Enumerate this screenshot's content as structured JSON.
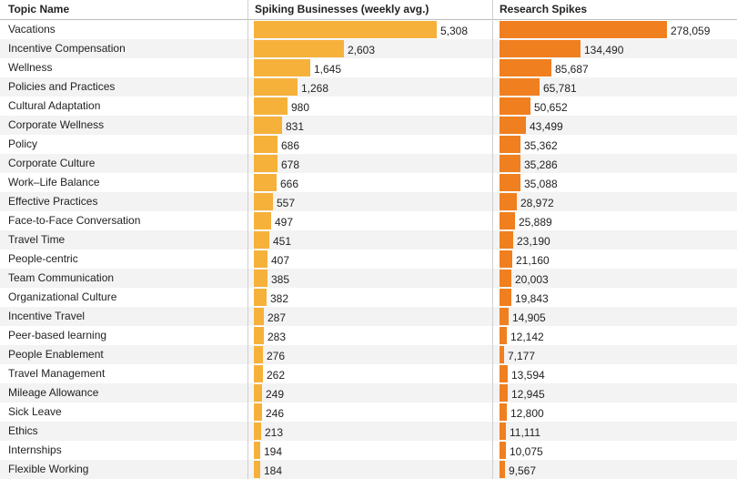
{
  "chart_data": {
    "type": "table",
    "headers": {
      "topic": "Topic Name",
      "businesses": "Spiking Businesses (weekly avg.)",
      "research": "Research Spikes"
    },
    "colors": {
      "businesses_bar": "#f6b13b",
      "research_bar": "#f07f1f"
    },
    "rows": [
      {
        "topic": "Vacations",
        "businesses": 5308,
        "businesses_label": "5,308",
        "research": 278059,
        "research_label": "278,059"
      },
      {
        "topic": "Incentive Compensation",
        "businesses": 2603,
        "businesses_label": "2,603",
        "research": 134490,
        "research_label": "134,490"
      },
      {
        "topic": "Wellness",
        "businesses": 1645,
        "businesses_label": "1,645",
        "research": 85687,
        "research_label": "85,687"
      },
      {
        "topic": "Policies and Practices",
        "businesses": 1268,
        "businesses_label": "1,268",
        "research": 65781,
        "research_label": "65,781"
      },
      {
        "topic": "Cultural Adaptation",
        "businesses": 980,
        "businesses_label": "980",
        "research": 50652,
        "research_label": "50,652"
      },
      {
        "topic": "Corporate Wellness",
        "businesses": 831,
        "businesses_label": "831",
        "research": 43499,
        "research_label": "43,499"
      },
      {
        "topic": "Policy",
        "businesses": 686,
        "businesses_label": "686",
        "research": 35362,
        "research_label": "35,362"
      },
      {
        "topic": "Corporate Culture",
        "businesses": 678,
        "businesses_label": "678",
        "research": 35286,
        "research_label": "35,286"
      },
      {
        "topic": "Work–Life Balance",
        "businesses": 666,
        "businesses_label": "666",
        "research": 35088,
        "research_label": "35,088"
      },
      {
        "topic": "Effective Practices",
        "businesses": 557,
        "businesses_label": "557",
        "research": 28972,
        "research_label": "28,972"
      },
      {
        "topic": "Face-to-Face Conversation",
        "businesses": 497,
        "businesses_label": "497",
        "research": 25889,
        "research_label": "25,889"
      },
      {
        "topic": "Travel Time",
        "businesses": 451,
        "businesses_label": "451",
        "research": 23190,
        "research_label": "23,190"
      },
      {
        "topic": "People-centric",
        "businesses": 407,
        "businesses_label": "407",
        "research": 21160,
        "research_label": "21,160"
      },
      {
        "topic": "Team Communication",
        "businesses": 385,
        "businesses_label": "385",
        "research": 20003,
        "research_label": "20,003"
      },
      {
        "topic": "Organizational Culture",
        "businesses": 382,
        "businesses_label": "382",
        "research": 19843,
        "research_label": "19,843"
      },
      {
        "topic": "Incentive Travel",
        "businesses": 287,
        "businesses_label": "287",
        "research": 14905,
        "research_label": "14,905"
      },
      {
        "topic": "Peer-based learning",
        "businesses": 283,
        "businesses_label": "283",
        "research": 12142,
        "research_label": "12,142"
      },
      {
        "topic": "People Enablement",
        "businesses": 276,
        "businesses_label": "276",
        "research": 7177,
        "research_label": "7,177"
      },
      {
        "topic": "Travel Management",
        "businesses": 262,
        "businesses_label": "262",
        "research": 13594,
        "research_label": "13,594"
      },
      {
        "topic": "Mileage Allowance",
        "businesses": 249,
        "businesses_label": "249",
        "research": 12945,
        "research_label": "12,945"
      },
      {
        "topic": "Sick Leave",
        "businesses": 246,
        "businesses_label": "246",
        "research": 12800,
        "research_label": "12,800"
      },
      {
        "topic": "Ethics",
        "businesses": 213,
        "businesses_label": "213",
        "research": 11111,
        "research_label": "11,111"
      },
      {
        "topic": "Internships",
        "businesses": 194,
        "businesses_label": "194",
        "research": 10075,
        "research_label": "10,075"
      },
      {
        "topic": "Flexible Working",
        "businesses": 184,
        "businesses_label": "184",
        "research": 9567,
        "research_label": "9,567"
      }
    ]
  }
}
